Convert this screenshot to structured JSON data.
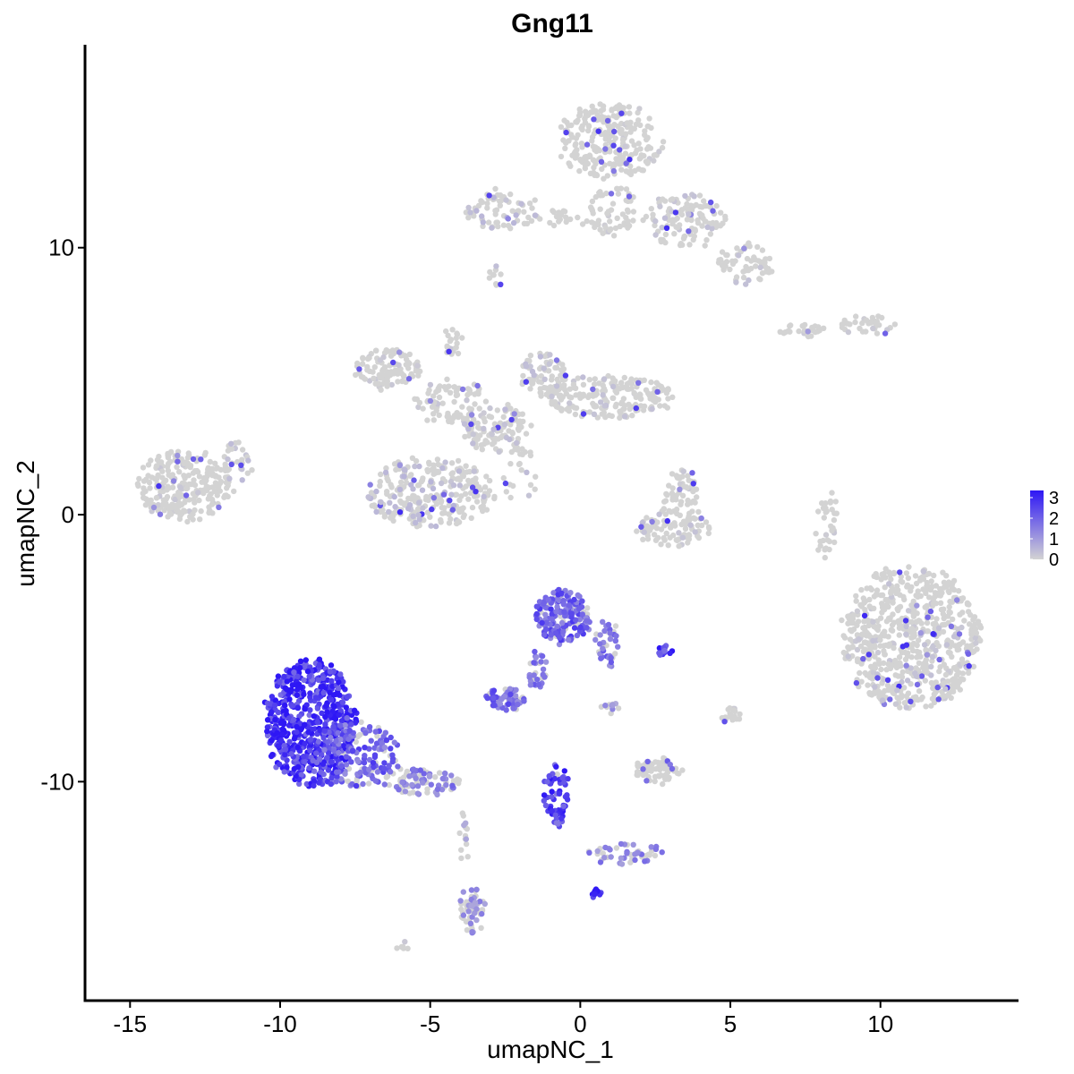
{
  "chart_data": {
    "type": "scatter",
    "title": "Gng11",
    "xlabel": "umapNC_1",
    "ylabel": "umapNC_2",
    "xlim": [
      -16.5,
      14.6
    ],
    "ylim": [
      -18.2,
      17.6
    ],
    "xticks": [
      -15,
      -10,
      -5,
      0,
      5,
      10
    ],
    "yticks": [
      -10,
      0,
      10
    ],
    "x_tick_labels": [
      "-15",
      "-10",
      "-5",
      "0",
      "5",
      "10"
    ],
    "y_tick_labels": [
      "-10",
      "0",
      "10"
    ],
    "grid": false,
    "legend": {
      "position": "right",
      "title": "",
      "labels": [
        "3",
        "2",
        "1",
        "0"
      ],
      "values": [
        3,
        2,
        1,
        0
      ],
      "color_low": "#d3d3d3",
      "color_high": "#2e17f5"
    },
    "clusters": [
      {
        "label": "",
        "x": -13.2,
        "y": 1.1,
        "rx": 1.6,
        "ry": 1.3,
        "n": 260,
        "expr": 0.05
      },
      {
        "label": "",
        "x": -11.4,
        "y": 2.0,
        "rx": 0.5,
        "ry": 0.7,
        "n": 30,
        "expr": 0.1
      },
      {
        "label": "",
        "x": -6.4,
        "y": 5.5,
        "rx": 1.1,
        "ry": 0.7,
        "n": 110,
        "expr": 0.05
      },
      {
        "label": "",
        "x": -4.3,
        "y": 4.2,
        "rx": 1.3,
        "ry": 0.8,
        "n": 80,
        "expr": 0.06
      },
      {
        "label": "",
        "x": -5.0,
        "y": 0.8,
        "rx": 2.2,
        "ry": 1.3,
        "n": 280,
        "expr": 0.12
      },
      {
        "label": "",
        "x": -2.8,
        "y": 3.2,
        "rx": 1.2,
        "ry": 0.9,
        "n": 110,
        "expr": 0.1
      },
      {
        "label": "",
        "x": -1.2,
        "y": 5.2,
        "rx": 0.8,
        "ry": 0.9,
        "n": 80,
        "expr": 0.1
      },
      {
        "label": "",
        "x": 1.0,
        "y": 4.4,
        "rx": 2.2,
        "ry": 0.8,
        "n": 190,
        "expr": 0.08
      },
      {
        "label": "",
        "x": -4.2,
        "y": 6.5,
        "rx": 0.3,
        "ry": 0.8,
        "n": 20,
        "expr": 0.05
      },
      {
        "label": "",
        "x": -2.0,
        "y": 1.5,
        "rx": 0.6,
        "ry": 1.1,
        "n": 25,
        "expr": 0.1
      },
      {
        "label": "",
        "x": 1.0,
        "y": 14.0,
        "rx": 1.8,
        "ry": 1.4,
        "n": 260,
        "expr": 0.04
      },
      {
        "label": "",
        "x": 1.1,
        "y": 11.4,
        "rx": 0.8,
        "ry": 1.0,
        "n": 60,
        "expr": 0.05
      },
      {
        "label": "",
        "x": 3.5,
        "y": 11.0,
        "rx": 1.4,
        "ry": 1.0,
        "n": 120,
        "expr": 0.08
      },
      {
        "label": "",
        "x": 5.5,
        "y": 9.4,
        "rx": 0.9,
        "ry": 0.8,
        "n": 60,
        "expr": 0.1
      },
      {
        "label": "",
        "x": -2.6,
        "y": 11.4,
        "rx": 1.2,
        "ry": 0.7,
        "n": 70,
        "expr": 0.12
      },
      {
        "label": "",
        "x": -0.6,
        "y": 11.1,
        "rx": 1.0,
        "ry": 0.3,
        "n": 20,
        "expr": 0.1
      },
      {
        "label": "",
        "x": -2.8,
        "y": 8.9,
        "rx": 0.2,
        "ry": 0.4,
        "n": 10,
        "expr": 0.1
      },
      {
        "label": "",
        "x": 7.4,
        "y": 6.9,
        "rx": 0.8,
        "ry": 0.25,
        "n": 25,
        "expr": 0.05
      },
      {
        "label": "",
        "x": 9.6,
        "y": 7.1,
        "rx": 0.9,
        "ry": 0.35,
        "n": 35,
        "expr": 0.05
      },
      {
        "label": "",
        "x": 3.4,
        "y": 0.8,
        "rx": 0.6,
        "ry": 0.9,
        "n": 50,
        "expr": 0.05
      },
      {
        "label": "",
        "x": 3.1,
        "y": -0.5,
        "rx": 1.3,
        "ry": 0.7,
        "n": 90,
        "expr": 0.08
      },
      {
        "label": "",
        "x": 8.2,
        "y": -0.3,
        "rx": 0.3,
        "ry": 1.3,
        "n": 35,
        "expr": 0.05
      },
      {
        "label": "",
        "x": 11.0,
        "y": -4.6,
        "rx": 2.3,
        "ry": 2.7,
        "n": 700,
        "expr": 0.07
      },
      {
        "label": "",
        "x": -0.6,
        "y": -3.8,
        "rx": 0.9,
        "ry": 1.0,
        "n": 190,
        "expr": 0.6
      },
      {
        "label": "",
        "x": 0.9,
        "y": -4.8,
        "rx": 0.4,
        "ry": 0.8,
        "n": 40,
        "expr": 0.5
      },
      {
        "label": "",
        "x": -1.4,
        "y": -5.9,
        "rx": 0.3,
        "ry": 0.8,
        "n": 30,
        "expr": 0.5
      },
      {
        "label": "",
        "x": -2.5,
        "y": -6.9,
        "rx": 0.6,
        "ry": 0.4,
        "n": 70,
        "expr": 0.55
      },
      {
        "label": "",
        "x": 2.8,
        "y": -5.1,
        "rx": 0.25,
        "ry": 0.15,
        "n": 15,
        "expr": 0.8
      },
      {
        "label": "",
        "x": -9.0,
        "y": -7.8,
        "rx": 1.5,
        "ry": 2.4,
        "n": 600,
        "expr": 0.85
      },
      {
        "label": "",
        "x": -7.5,
        "y": -9.0,
        "rx": 1.5,
        "ry": 1.2,
        "n": 180,
        "expr": 0.6
      },
      {
        "label": "",
        "x": -5.3,
        "y": -10.0,
        "rx": 1.3,
        "ry": 0.5,
        "n": 90,
        "expr": 0.45
      },
      {
        "label": "",
        "x": -3.6,
        "y": -14.8,
        "rx": 0.4,
        "ry": 0.9,
        "n": 60,
        "expr": 0.35
      },
      {
        "label": "",
        "x": -3.9,
        "y": -12.0,
        "rx": 0.2,
        "ry": 1.0,
        "n": 15,
        "expr": 0.2
      },
      {
        "label": "",
        "x": -0.8,
        "y": -10.4,
        "rx": 0.4,
        "ry": 1.3,
        "n": 60,
        "expr": 0.75
      },
      {
        "label": "",
        "x": 1.5,
        "y": -12.7,
        "rx": 1.3,
        "ry": 0.4,
        "n": 50,
        "expr": 0.4
      },
      {
        "label": "",
        "x": 0.5,
        "y": -14.2,
        "rx": 0.12,
        "ry": 0.1,
        "n": 12,
        "expr": 0.9
      },
      {
        "label": "",
        "x": 2.6,
        "y": -9.6,
        "rx": 0.8,
        "ry": 0.5,
        "n": 70,
        "expr": 0.05
      },
      {
        "label": "",
        "x": 5.0,
        "y": -7.5,
        "rx": 0.3,
        "ry": 0.3,
        "n": 20,
        "expr": 0.05
      },
      {
        "label": "",
        "x": -6.0,
        "y": -16.1,
        "rx": 0.2,
        "ry": 0.15,
        "n": 6,
        "expr": 0.05
      },
      {
        "label": "",
        "x": 1.0,
        "y": -7.2,
        "rx": 0.4,
        "ry": 0.2,
        "n": 12,
        "expr": 0.35
      }
    ]
  }
}
